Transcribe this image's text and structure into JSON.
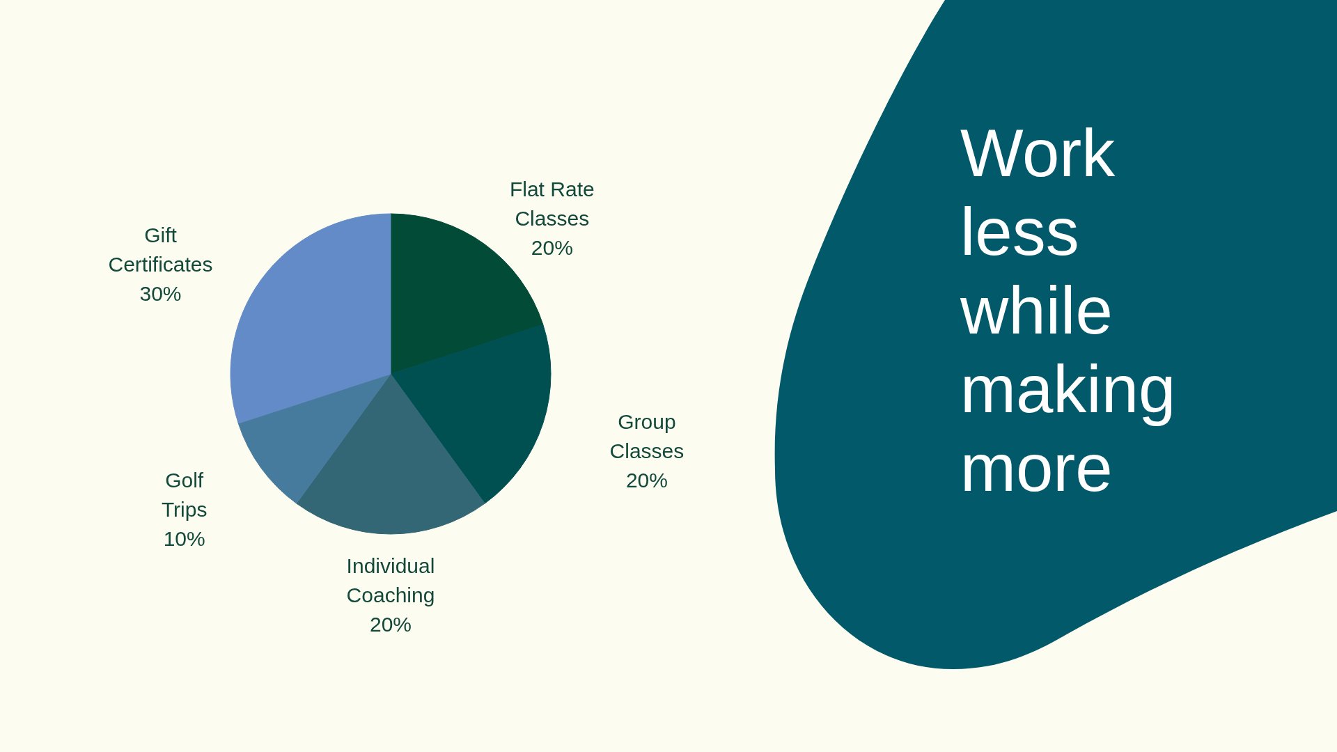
{
  "chart_data": {
    "type": "pie",
    "title": "Work less while making more",
    "categories": [
      "Flat Rate Classes",
      "Group Classes",
      "Individual Coaching",
      "Golf Trips",
      "Gift Certificates"
    ],
    "values": [
      20,
      20,
      20,
      10,
      30
    ],
    "colors": [
      "#014b37",
      "#005052",
      "#336775",
      "#477b9e",
      "#638bc7"
    ],
    "value_labels": [
      "20%",
      "20%",
      "20%",
      "10%",
      "30%"
    ]
  }
}
